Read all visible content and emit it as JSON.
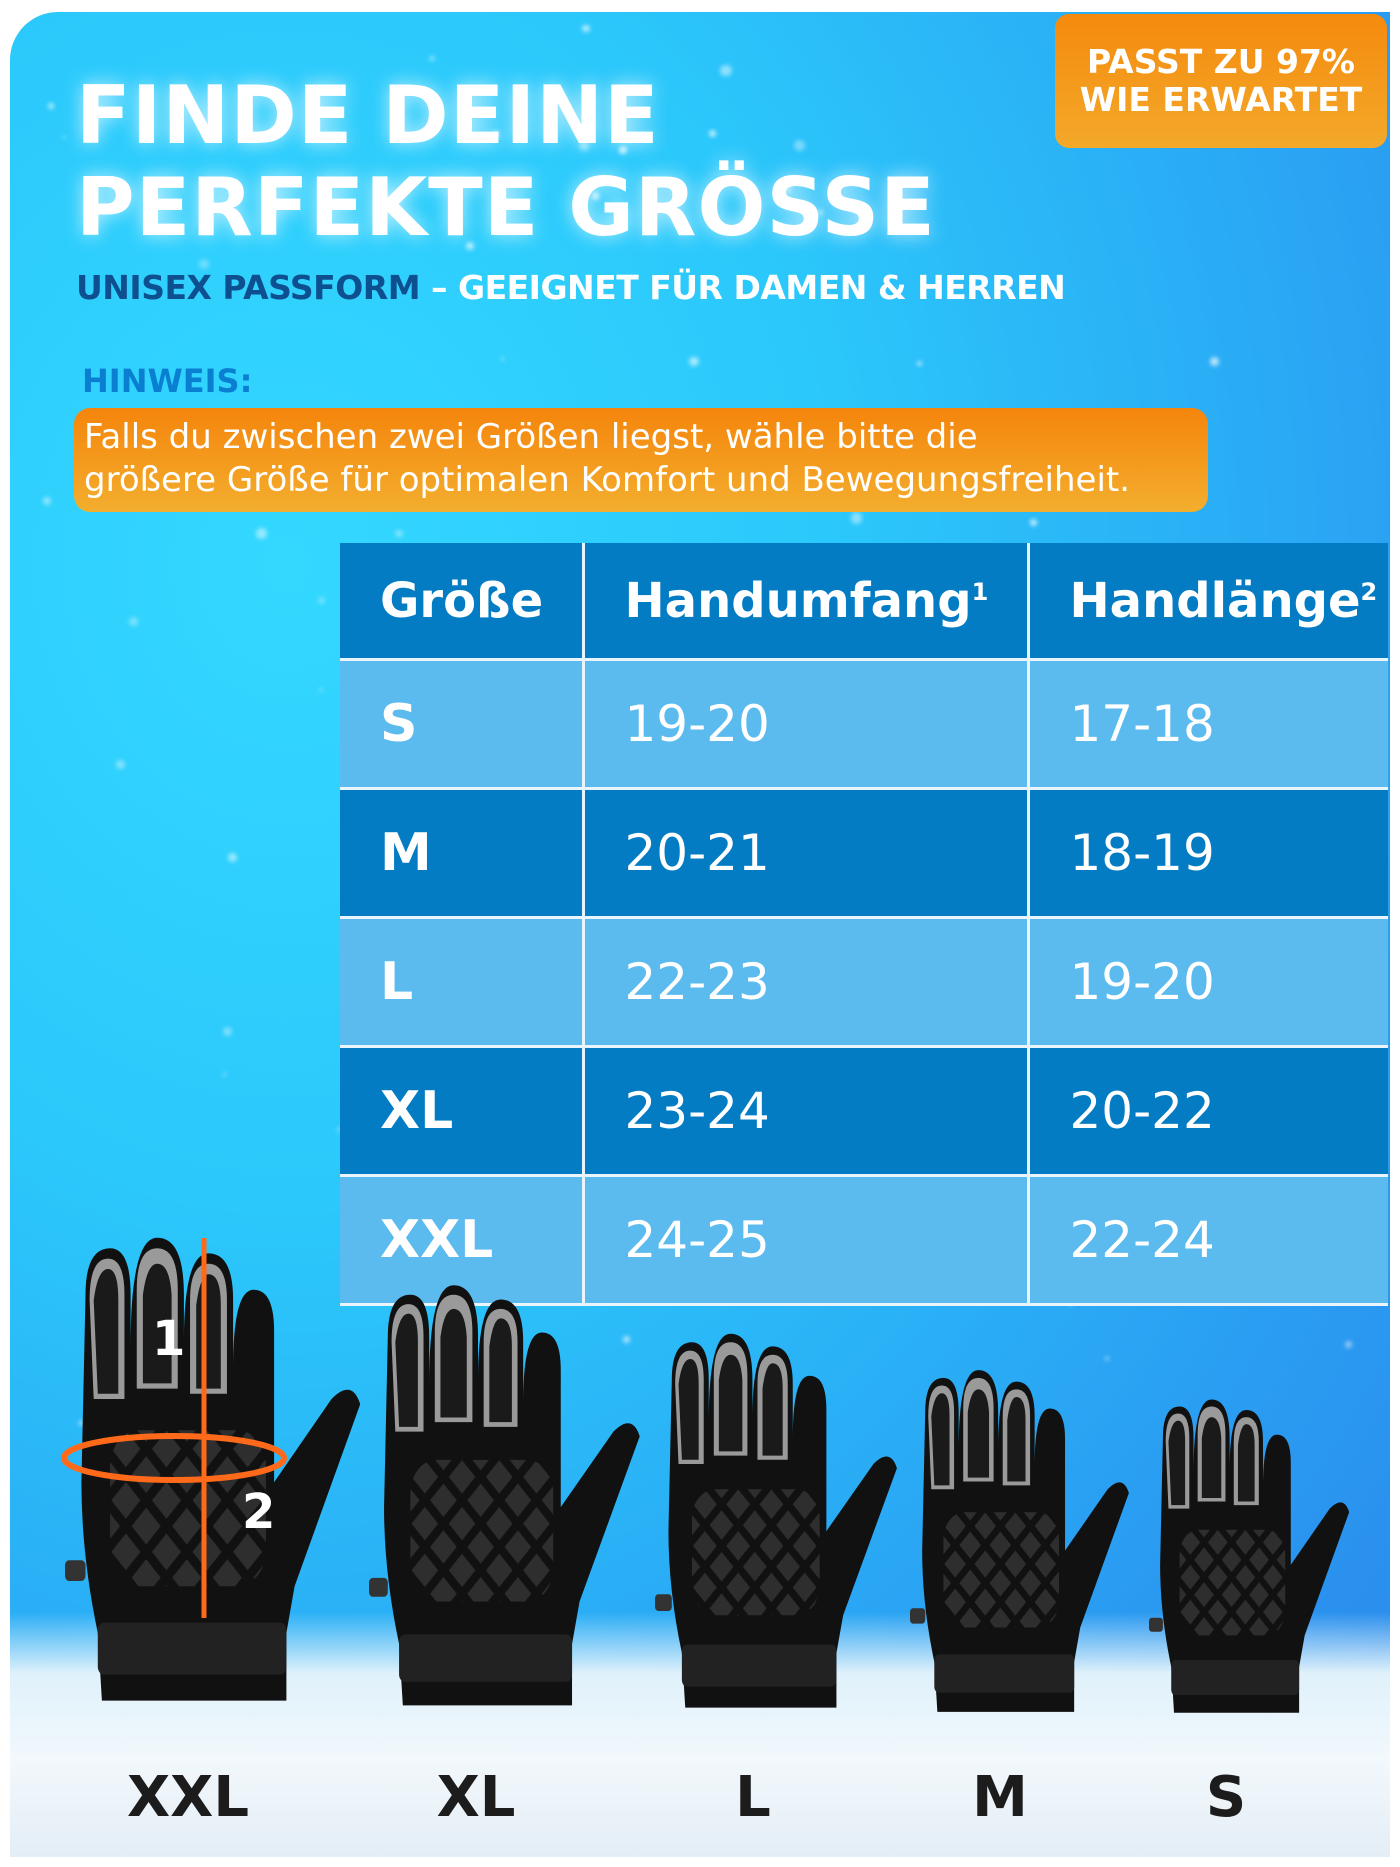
{
  "header": {
    "title_line1": "FINDE DEINE",
    "title_line2": "PERFEKTE GRÖSSE",
    "subtitle_part1": "UNISEX PASSFORM",
    "subtitle_part2": " – GEEIGNET FÜR DAMEN & HERREN"
  },
  "badge": {
    "line1": "PASST ZU 97%",
    "line2": "WIE ERWARTET"
  },
  "hint": {
    "label": "HINWEIS:",
    "line1": "Falls du zwischen zwei Größen liegst, wähle bitte die",
    "line2": "größere Größe für optimalen Komfort und Bewegungsfreiheit."
  },
  "table": {
    "headers": [
      {
        "label": "Größe",
        "sup": ""
      },
      {
        "label": "Handumfang",
        "sup": "1"
      },
      {
        "label": "Handlänge",
        "sup": "2"
      }
    ],
    "rows": [
      {
        "size": "S",
        "circumference": "19-20",
        "length": "17-18"
      },
      {
        "size": "M",
        "circumference": "20-21",
        "length": "18-19"
      },
      {
        "size": "L",
        "circumference": "22-23",
        "length": "19-20"
      },
      {
        "size": "XL",
        "circumference": "23-24",
        "length": "20-22"
      },
      {
        "size": "XXL",
        "circumference": "24-25",
        "length": "22-24"
      }
    ]
  },
  "gloves": {
    "measure_marker_1": "1",
    "measure_marker_2": "2",
    "labels": [
      "XXL",
      "XL",
      "L",
      "M",
      "S"
    ]
  },
  "colors": {
    "accent_orange": "#f5850c",
    "table_dark": "#037cc4",
    "table_light": "#5bbaee",
    "navy": "#0d4f8f"
  }
}
